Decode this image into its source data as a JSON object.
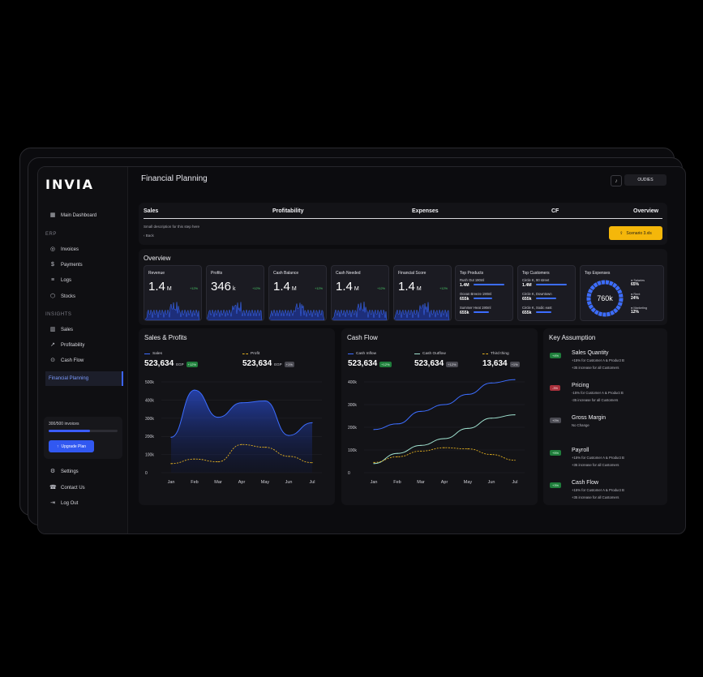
{
  "app": {
    "logo": "INVIA",
    "window_title": "Financial Planning",
    "user_button": "OUDIES"
  },
  "sidebar": {
    "main": "Main Dashboard",
    "erp_label": "ERP",
    "erp_items": [
      "Invoices",
      "Payments",
      "Logs",
      "Stocks"
    ],
    "insights_label": "INSIGHTS",
    "insight_items": [
      "Sales",
      "Profitability",
      "Cash Flow"
    ],
    "active_item": "Financial Planning",
    "quota_text": "300/500 invoices",
    "quota_progress": 0.6,
    "upgrade_label": "Upgrade Plan",
    "bottom_items": [
      "Settings",
      "Contact Us",
      "Log Out"
    ]
  },
  "steps": {
    "labels": [
      "Sales",
      "Profitability",
      "Expenses",
      "CF",
      "Overview"
    ],
    "description": "Small description for this step here",
    "back": "Back",
    "cta": "Scenario 3.xls"
  },
  "overview": {
    "title": "Overview",
    "cards": [
      {
        "label": "Revenue",
        "value": "1.4",
        "unit": "M",
        "change": "+12%"
      },
      {
        "label": "Profits",
        "value": "346",
        "unit": "k",
        "change": "+12%"
      },
      {
        "label": "Cash Balance",
        "value": "1.4",
        "unit": "M",
        "change": "+12%"
      },
      {
        "label": "Cash Needed",
        "value": "1.4",
        "unit": "M",
        "change": "+12%"
      },
      {
        "label": "Financial Score",
        "value": "1.4",
        "unit": "M",
        "change": "+12%"
      }
    ],
    "top_products": {
      "label": "Top Products",
      "items": [
        {
          "name": "Rush Out 190ml",
          "value": "1.4M",
          "share": 0.9
        },
        {
          "name": "Ocean Breeze 190ml",
          "value": "655k",
          "share": 0.55
        },
        {
          "name": "Summer Heat 190ml",
          "value": "655k",
          "share": 0.45
        }
      ]
    },
    "top_customers": {
      "label": "Top Customers",
      "items": [
        {
          "name": "Circle K, 90 street",
          "value": "1.4M",
          "share": 0.9
        },
        {
          "name": "Circle K, Downtown",
          "value": "655k",
          "share": 0.6
        },
        {
          "name": "Circle K, Sodic east",
          "value": "655k",
          "share": 0.45
        }
      ]
    },
    "top_expenses": {
      "label": "Top Expenses",
      "total": "760k",
      "items": [
        {
          "name": "Salaries",
          "pct": "65%"
        },
        {
          "name": "Rent",
          "pct": "24%"
        },
        {
          "name": "Marketing",
          "pct": "12%"
        }
      ]
    }
  },
  "sales_profits": {
    "title": "Sales & Profits",
    "sales": {
      "label": "Sales",
      "value": "523,634",
      "currency": "EGP",
      "badge": "+12%"
    },
    "profit": {
      "label": "Profit",
      "value": "523,634",
      "currency": "EGP",
      "badge": "+1%"
    }
  },
  "cash_flow": {
    "title": "Cash Flow",
    "inflow": {
      "label": "Cash Inflow",
      "value": "523,634",
      "badge": "+12%"
    },
    "outflow": {
      "label": "Cash Outflow",
      "value": "523,634",
      "badge": "+12%"
    },
    "third": {
      "label": "Third thing",
      "value": "13,634",
      "badge": "+1%"
    }
  },
  "key_assumption": {
    "title": "Key Assumption",
    "items": [
      {
        "badge": "+4%",
        "badge_type": "g",
        "title": "Sales Quantity",
        "lines": [
          "+15% for Customer A & Product B",
          "+35 increase for all Customers"
        ]
      },
      {
        "badge": "-3%",
        "badge_type": "r",
        "title": "Pricing",
        "lines": [
          "-15% for Customer A & Product B",
          "-35 increase for all Customers"
        ]
      },
      {
        "badge": "+0%",
        "badge_type": "gr",
        "title": "Gross Margin",
        "lines": [
          "No Change"
        ]
      },
      {
        "badge": "+5%",
        "badge_type": "g",
        "title": "Payroll",
        "lines": [
          "+15% for Customer A & Product B",
          "+35 increase for all Customers"
        ]
      },
      {
        "badge": "+3%",
        "badge_type": "g",
        "title": "Cash Flow",
        "lines": [
          "+15% for Customer A & Product B",
          "+35 increase for all Customers"
        ]
      }
    ]
  },
  "chart_data": [
    {
      "type": "area",
      "title": "Sales & Profits",
      "x": [
        "Jan",
        "Feb",
        "Mar",
        "Apr",
        "May",
        "Jun",
        "Jul"
      ],
      "y_ticks": [
        "0",
        "100k",
        "200k",
        "300k",
        "400k",
        "500k"
      ],
      "ylim": [
        0,
        500
      ],
      "series": [
        {
          "name": "Sales",
          "values": [
            195,
            455,
            305,
            385,
            395,
            205,
            275
          ],
          "color": "#3c6dff"
        },
        {
          "name": "Profit",
          "values": [
            50,
            75,
            60,
            155,
            140,
            90,
            55
          ],
          "color": "#e5b220"
        }
      ]
    },
    {
      "type": "line",
      "title": "Cash Flow",
      "x": [
        "Jan",
        "Feb",
        "Mar",
        "Apr",
        "May",
        "Jun",
        "Jul"
      ],
      "y_ticks": [
        "0",
        "100k",
        "200k",
        "300k",
        "400k"
      ],
      "ylim": [
        0,
        400
      ],
      "series": [
        {
          "name": "Cash Inflow",
          "values": [
            190,
            215,
            270,
            300,
            345,
            395,
            410
          ],
          "color": "#3c6dff"
        },
        {
          "name": "Cash Outflow",
          "values": [
            40,
            85,
            120,
            150,
            195,
            240,
            255
          ],
          "color": "#9fe1cf"
        },
        {
          "name": "Third thing",
          "values": [
            45,
            70,
            95,
            110,
            105,
            80,
            55
          ],
          "color": "#e5b220"
        }
      ]
    }
  ]
}
